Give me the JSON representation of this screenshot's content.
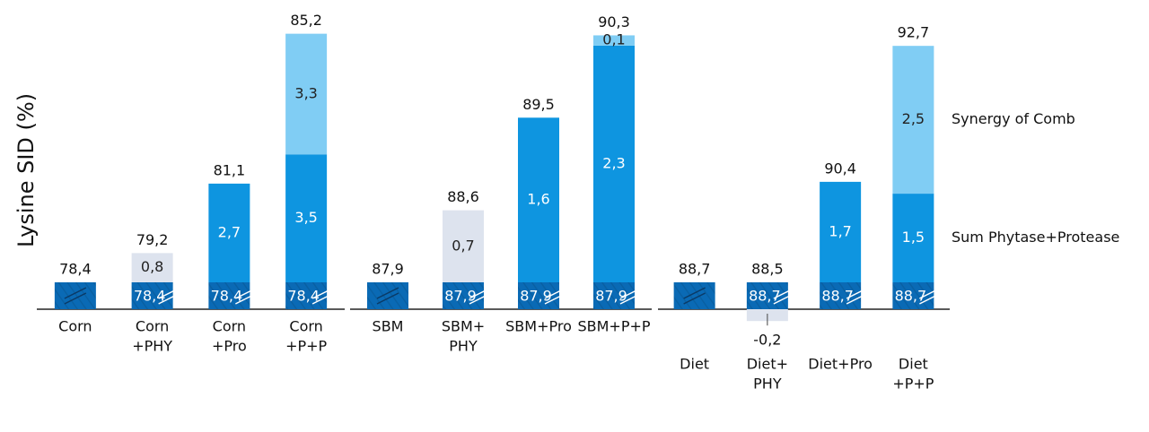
{
  "chart_data": [
    {
      "type": "bar",
      "ylabel": "Lysine SID (%)",
      "categories": [
        [
          "Corn"
        ],
        [
          "Corn",
          "+PHY"
        ],
        [
          "Corn",
          "+Pro"
        ],
        [
          "Corn",
          "+P+P"
        ]
      ],
      "ylim": [
        78.4,
        86
      ],
      "series": [
        {
          "color": "#0a6ab5",
          "values": [
            78.4,
            78.4,
            78.4,
            78.4
          ],
          "value_labels": [
            null,
            "78,4",
            "78,4",
            "78,4"
          ]
        },
        {
          "color": "#dde3ee",
          "values": [
            null,
            0.8,
            null,
            null
          ],
          "value_labels": [
            null,
            "0,8",
            null,
            null
          ]
        },
        {
          "color": "#0e95e0",
          "values": [
            null,
            null,
            2.7,
            3.5
          ],
          "value_labels": [
            null,
            null,
            "2,7",
            "3,5"
          ]
        },
        {
          "color": "#80cdf4",
          "values": [
            null,
            null,
            null,
            3.3
          ],
          "value_labels": [
            null,
            null,
            null,
            "3,3"
          ]
        }
      ],
      "totals": {
        "values": [
          78.4,
          79.2,
          81.1,
          85.2
        ],
        "value_labels": [
          "78,4",
          "79,2",
          "81,1",
          "85,2"
        ]
      }
    },
    {
      "type": "bar",
      "categories": [
        [
          "SBM"
        ],
        [
          "SBM+",
          "PHY"
        ],
        [
          "SBM+Pro"
        ],
        [
          "SBM+P+P"
        ]
      ],
      "ylim": [
        87.9,
        90.6
      ],
      "series": [
        {
          "color": "#0a6ab5",
          "values": [
            87.9,
            87.9,
            87.9,
            87.9
          ],
          "value_labels": [
            null,
            "87,9",
            "87,9",
            "87,9"
          ]
        },
        {
          "color": "#dde3ee",
          "values": [
            null,
            0.7,
            null,
            null
          ],
          "value_labels": [
            null,
            "0,7",
            null,
            null
          ]
        },
        {
          "color": "#0e95e0",
          "values": [
            null,
            null,
            1.6,
            2.3
          ],
          "value_labels": [
            null,
            null,
            "1,6",
            "2,3"
          ]
        },
        {
          "color": "#80cdf4",
          "values": [
            null,
            null,
            null,
            0.1
          ],
          "value_labels": [
            null,
            null,
            null,
            "0,1"
          ]
        }
      ],
      "totals": {
        "values": [
          87.9,
          88.6,
          89.5,
          90.3
        ],
        "value_labels": [
          "87,9",
          "88,6",
          "89,5",
          "90,3"
        ]
      }
    },
    {
      "type": "bar",
      "categories": [
        [
          "Diet"
        ],
        [
          "Diet+",
          "PHY"
        ],
        [
          "Diet+Pro"
        ],
        [
          "Diet",
          "+P+P"
        ]
      ],
      "ylim": [
        88.7,
        93.4
      ],
      "series": [
        {
          "color": "#0a6ab5",
          "values": [
            88.7,
            88.7,
            88.7,
            88.7
          ],
          "value_labels": [
            null,
            "88,7",
            "88,7",
            "88,7"
          ]
        },
        {
          "color": "#dde3ee",
          "values": [
            null,
            -0.2,
            null,
            null
          ],
          "value_labels": [
            null,
            "-0,2",
            null,
            null
          ]
        },
        {
          "name": "Sum Phytase+Protease",
          "color": "#0e95e0",
          "values": [
            null,
            null,
            1.7,
            1.5
          ],
          "value_labels": [
            null,
            null,
            "1,7",
            "1,5"
          ]
        },
        {
          "name": "Synergy of Comb",
          "color": "#80cdf4",
          "values": [
            null,
            null,
            null,
            2.5
          ],
          "value_labels": [
            null,
            null,
            null,
            "2,5"
          ]
        }
      ],
      "totals": {
        "values": [
          88.7,
          88.5,
          90.4,
          92.7
        ],
        "value_labels": [
          "88,7",
          "88,5",
          "90,4",
          "92,7"
        ]
      }
    }
  ]
}
